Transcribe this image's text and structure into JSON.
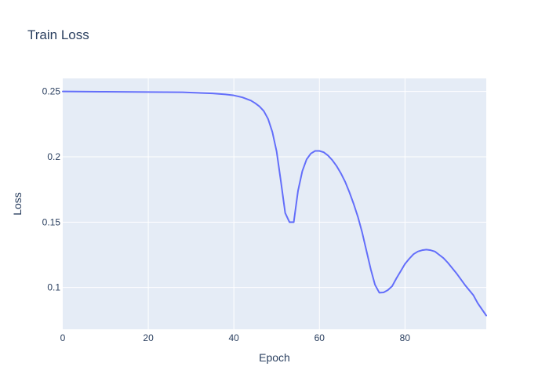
{
  "chart_data": {
    "type": "line",
    "title": "Train Loss",
    "xlabel": "Epoch",
    "ylabel": "Loss",
    "xlim": [
      0,
      99
    ],
    "ylim": [
      0.068,
      0.26
    ],
    "x_ticks": [
      0,
      20,
      40,
      60,
      80
    ],
    "y_ticks": [
      0.1,
      0.15,
      0.2,
      0.25
    ],
    "x_tick_labels": [
      "0",
      "20",
      "40",
      "60",
      "80"
    ],
    "y_tick_labels": [
      "0.1",
      "0.15",
      "0.2",
      "0.25"
    ],
    "grid": true,
    "legend": false,
    "colors": {
      "line": "#636efa",
      "plot_bg": "#e5ecf6",
      "text": "#2a3f5f"
    },
    "series": [
      {
        "x": [
          0,
          10,
          20,
          28,
          35,
          38,
          40,
          42,
          44,
          45,
          46,
          47,
          48,
          49,
          50,
          51,
          52,
          53,
          54,
          55,
          56,
          57,
          58,
          59,
          60,
          61,
          62,
          63,
          64,
          65,
          66,
          67,
          68,
          69,
          70,
          71,
          72,
          73,
          74,
          75,
          76,
          77,
          78,
          79,
          80,
          81,
          82,
          83,
          84,
          85,
          86,
          87,
          88,
          89,
          90,
          92,
          94,
          96,
          97,
          99
        ],
        "y": [
          0.25,
          0.2498,
          0.2496,
          0.2494,
          0.2485,
          0.2478,
          0.247,
          0.2455,
          0.243,
          0.241,
          0.2385,
          0.235,
          0.229,
          0.219,
          0.204,
          0.181,
          0.157,
          0.15,
          0.15,
          0.174,
          0.189,
          0.198,
          0.2025,
          0.2045,
          0.2045,
          0.2035,
          0.201,
          0.1975,
          0.193,
          0.1875,
          0.181,
          0.173,
          0.164,
          0.154,
          0.142,
          0.128,
          0.114,
          0.102,
          0.096,
          0.0962,
          0.098,
          0.101,
          0.107,
          0.1125,
          0.118,
          0.122,
          0.1255,
          0.1275,
          0.1285,
          0.129,
          0.1285,
          0.1275,
          0.125,
          0.1225,
          0.119,
          0.111,
          0.102,
          0.094,
          0.088,
          0.0785
        ]
      }
    ]
  }
}
